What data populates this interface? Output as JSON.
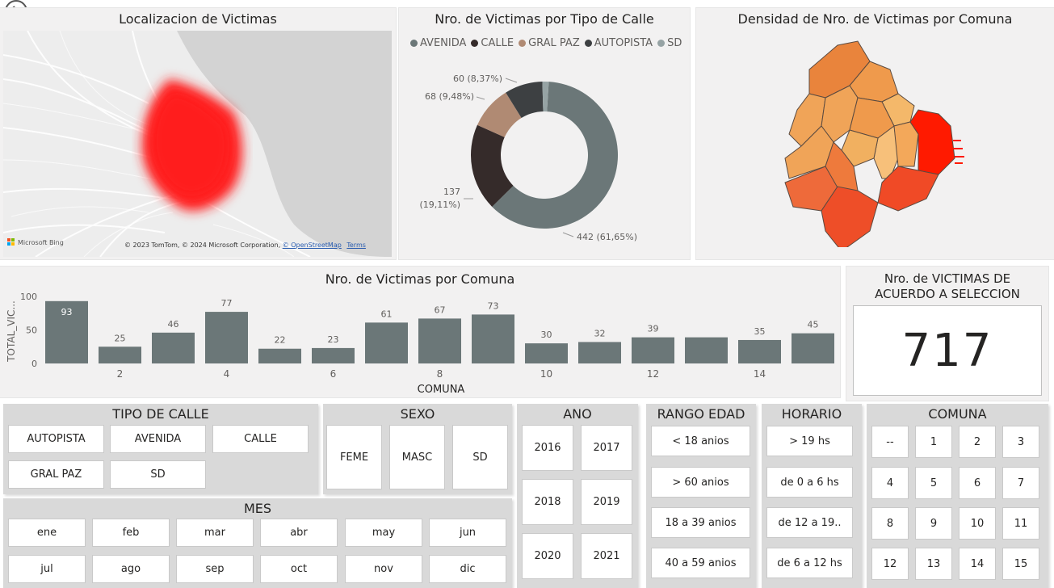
{
  "map_panel": {
    "title": "Localizacion de Victimas",
    "bing": "Microsoft Bing",
    "attribution": "© 2023 TomTom, © 2024 Microsoft Corporation,",
    "osm_link": "© OpenStreetMap",
    "terms_link": "Terms"
  },
  "donut_panel": {
    "title": "Nro. de Victimas por Tipo de Calle",
    "legend": [
      {
        "label": "AVENIDA",
        "color": "#6b7778"
      },
      {
        "label": "CALLE",
        "color": "#352b2a"
      },
      {
        "label": "GRAL PAZ",
        "color": "#b08a73"
      },
      {
        "label": "AUTOPISTA",
        "color": "#3d4042"
      },
      {
        "label": "SD",
        "color": "#96a3a4"
      }
    ]
  },
  "choropleth_panel": {
    "title": "Densidad de Nro. de Victimas por Comuna"
  },
  "bar_panel": {
    "title": "Nro. de Victimas por Comuna"
  },
  "card": {
    "title_line1": "Nro. de VICTIMAS DE",
    "title_line2": "ACUERDO A SELECCION",
    "value": "717"
  },
  "chart_data": [
    {
      "type": "pie",
      "title": "Nro. de Victimas por Tipo de Calle",
      "categories": [
        "AVENIDA",
        "CALLE",
        "GRAL PAZ",
        "AUTOPISTA",
        "SD"
      ],
      "values": [
        442,
        137,
        68,
        60,
        10
      ],
      "data_labels": {
        "AVENIDA": "442 (61,65%)",
        "CALLE_count": "137",
        "CALLE_pct": "(19,11%)",
        "GRAL PAZ": "68 (9,48%)",
        "AUTOPISTA": "60 (8,37%)"
      },
      "legend": "top"
    },
    {
      "type": "bar",
      "title": "Nro. de Victimas por Comuna",
      "xlabel": "COMUNA",
      "ylabel": "TOTAL_VIC...",
      "categories": [
        "1",
        "2",
        "3",
        "4",
        "5",
        "6",
        "7",
        "8",
        "9",
        "10",
        "11",
        "12",
        "13",
        "14",
        "15"
      ],
      "tick_labels": [
        "",
        "2",
        "",
        "4",
        "",
        "6",
        "",
        "8",
        "",
        "10",
        "",
        "12",
        "",
        "14",
        ""
      ],
      "values": [
        93,
        25,
        46,
        77,
        22,
        23,
        61,
        67,
        73,
        30,
        32,
        39,
        39,
        35,
        45
      ],
      "value_labels": [
        "93",
        "25",
        "46",
        "77",
        "22",
        "23",
        "61",
        "67",
        "73",
        "30",
        "32",
        "39",
        "",
        "35",
        "45"
      ],
      "yticks": [
        "0",
        "50",
        "100"
      ],
      "ylim": [
        0,
        100
      ],
      "color": "#6b7778"
    }
  ],
  "slicers": {
    "tipo_calle": {
      "title": "TIPO DE CALLE",
      "options": [
        "AUTOPISTA",
        "AVENIDA",
        "CALLE",
        "GRAL PAZ",
        "SD"
      ]
    },
    "sexo": {
      "title": "SEXO",
      "options": [
        "FEME",
        "MASC",
        "SD"
      ]
    },
    "ano": {
      "title": "ANO",
      "options": [
        "2016",
        "2017",
        "2018",
        "2019",
        "2020",
        "2021"
      ]
    },
    "rango_edad": {
      "title": "RANGO EDAD",
      "options": [
        "< 18 anios",
        "> 60 anios",
        "18 a 39 anios",
        "40 a 59 anios"
      ]
    },
    "horario": {
      "title": "HORARIO",
      "options": [
        "> 19 hs",
        "de 0 a 6 hs",
        "de 12 a 19..",
        "de 6 a 12 hs"
      ]
    },
    "comuna": {
      "title": "COMUNA",
      "options": [
        "--",
        "1",
        "2",
        "3",
        "4",
        "5",
        "6",
        "7",
        "8",
        "9",
        "10",
        "11",
        "12",
        "13",
        "14",
        "15"
      ]
    },
    "mes": {
      "title": "MES",
      "options": [
        "ene",
        "feb",
        "mar",
        "abr",
        "may",
        "jun",
        "jul",
        "ago",
        "sep",
        "oct",
        "nov",
        "dic"
      ]
    }
  }
}
